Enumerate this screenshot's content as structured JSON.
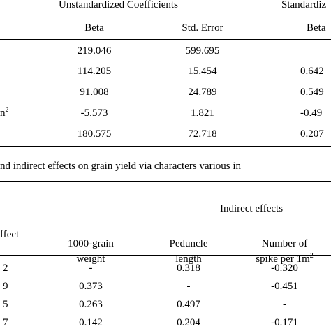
{
  "table1": {
    "group_headers": {
      "unstandardized": "Unstandardized Coefficients",
      "standardized": "Standardiz"
    },
    "sub_headers": {
      "beta": "Beta",
      "std_error": "Std. Error",
      "beta_std": "Beta"
    },
    "row_label_fragment": "n",
    "row_label_superscript": "2",
    "rows": [
      {
        "beta": "219.046",
        "se": "599.695",
        "std_beta": ""
      },
      {
        "beta": "114.205",
        "se": "15.454",
        "std_beta": "0.642"
      },
      {
        "beta": "91.008",
        "se": "24.789",
        "std_beta": "0.549"
      },
      {
        "beta": "-5.573",
        "se": "1.821",
        "std_beta": "-0.49"
      },
      {
        "beta": "180.575",
        "se": "72.718",
        "std_beta": "0.207"
      }
    ]
  },
  "table2": {
    "caption": "nd indirect effects on grain yield via characters various in",
    "group_header": "Indirect effects",
    "row_header_fragment": "ffect",
    "col_headers": {
      "grain_weight": [
        "1000-grain",
        "weight"
      ],
      "peduncle": [
        "Peduncle",
        "length"
      ],
      "spike": [
        "Number of",
        "spike per 1m"
      ],
      "spike_superscript": "2"
    },
    "rows": [
      {
        "label": "2",
        "grain_weight": "-",
        "peduncle": "0.318",
        "spike": "-0.320"
      },
      {
        "label": "9",
        "grain_weight": "0.373",
        "peduncle": "-",
        "spike": "-0.451"
      },
      {
        "label": "5",
        "grain_weight": "0.263",
        "peduncle": "0.497",
        "spike": "-"
      },
      {
        "label": "7",
        "grain_weight": "0.142",
        "peduncle": "0.204",
        "spike": "-0.171"
      }
    ]
  }
}
